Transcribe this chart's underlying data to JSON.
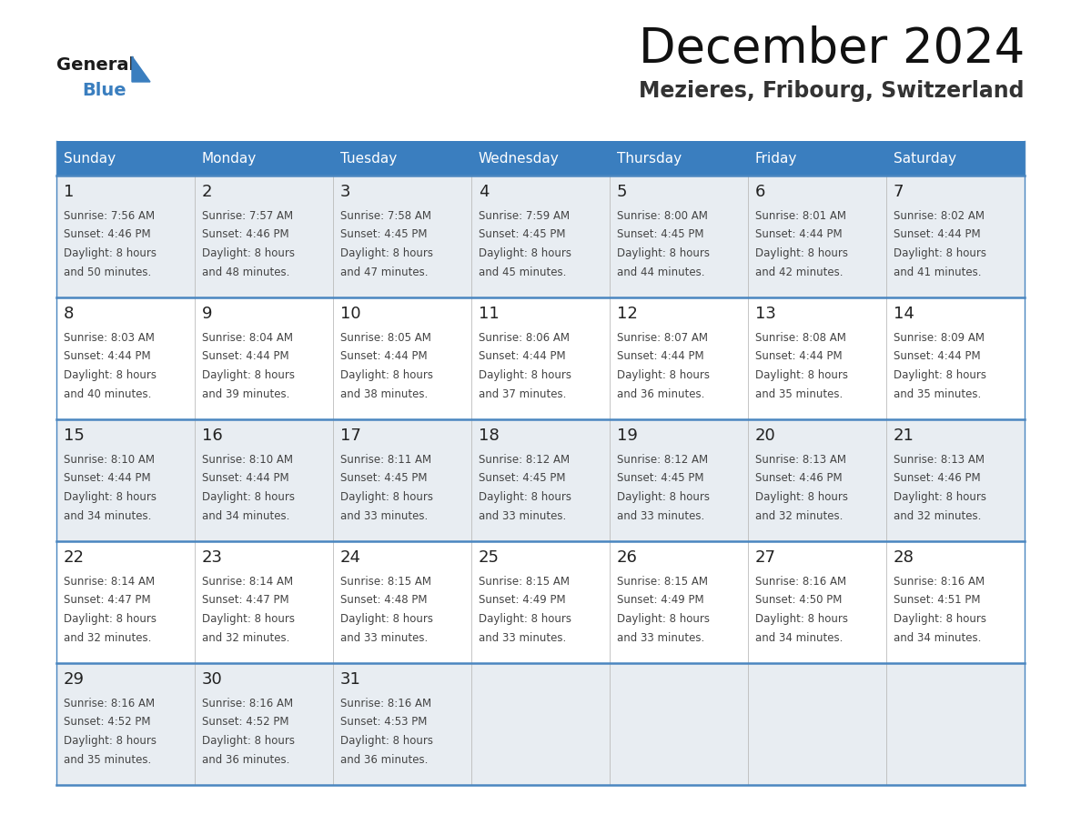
{
  "title": "December 2024",
  "subtitle": "Mezieres, Fribourg, Switzerland",
  "header_color": "#3a7ebf",
  "header_text_color": "#ffffff",
  "day_names": [
    "Sunday",
    "Monday",
    "Tuesday",
    "Wednesday",
    "Thursday",
    "Friday",
    "Saturday"
  ],
  "row_bg_odd": "#e8edf2",
  "row_bg_even": "#ffffff",
  "row_separator_color": "#4a86c0",
  "days": [
    {
      "day": 1,
      "col": 0,
      "row": 0,
      "sunrise": "7:56 AM",
      "sunset": "4:46 PM",
      "daylight": "8 hours\nand 50 minutes."
    },
    {
      "day": 2,
      "col": 1,
      "row": 0,
      "sunrise": "7:57 AM",
      "sunset": "4:46 PM",
      "daylight": "8 hours\nand 48 minutes."
    },
    {
      "day": 3,
      "col": 2,
      "row": 0,
      "sunrise": "7:58 AM",
      "sunset": "4:45 PM",
      "daylight": "8 hours\nand 47 minutes."
    },
    {
      "day": 4,
      "col": 3,
      "row": 0,
      "sunrise": "7:59 AM",
      "sunset": "4:45 PM",
      "daylight": "8 hours\nand 45 minutes."
    },
    {
      "day": 5,
      "col": 4,
      "row": 0,
      "sunrise": "8:00 AM",
      "sunset": "4:45 PM",
      "daylight": "8 hours\nand 44 minutes."
    },
    {
      "day": 6,
      "col": 5,
      "row": 0,
      "sunrise": "8:01 AM",
      "sunset": "4:44 PM",
      "daylight": "8 hours\nand 42 minutes."
    },
    {
      "day": 7,
      "col": 6,
      "row": 0,
      "sunrise": "8:02 AM",
      "sunset": "4:44 PM",
      "daylight": "8 hours\nand 41 minutes."
    },
    {
      "day": 8,
      "col": 0,
      "row": 1,
      "sunrise": "8:03 AM",
      "sunset": "4:44 PM",
      "daylight": "8 hours\nand 40 minutes."
    },
    {
      "day": 9,
      "col": 1,
      "row": 1,
      "sunrise": "8:04 AM",
      "sunset": "4:44 PM",
      "daylight": "8 hours\nand 39 minutes."
    },
    {
      "day": 10,
      "col": 2,
      "row": 1,
      "sunrise": "8:05 AM",
      "sunset": "4:44 PM",
      "daylight": "8 hours\nand 38 minutes."
    },
    {
      "day": 11,
      "col": 3,
      "row": 1,
      "sunrise": "8:06 AM",
      "sunset": "4:44 PM",
      "daylight": "8 hours\nand 37 minutes."
    },
    {
      "day": 12,
      "col": 4,
      "row": 1,
      "sunrise": "8:07 AM",
      "sunset": "4:44 PM",
      "daylight": "8 hours\nand 36 minutes."
    },
    {
      "day": 13,
      "col": 5,
      "row": 1,
      "sunrise": "8:08 AM",
      "sunset": "4:44 PM",
      "daylight": "8 hours\nand 35 minutes."
    },
    {
      "day": 14,
      "col": 6,
      "row": 1,
      "sunrise": "8:09 AM",
      "sunset": "4:44 PM",
      "daylight": "8 hours\nand 35 minutes."
    },
    {
      "day": 15,
      "col": 0,
      "row": 2,
      "sunrise": "8:10 AM",
      "sunset": "4:44 PM",
      "daylight": "8 hours\nand 34 minutes."
    },
    {
      "day": 16,
      "col": 1,
      "row": 2,
      "sunrise": "8:10 AM",
      "sunset": "4:44 PM",
      "daylight": "8 hours\nand 34 minutes."
    },
    {
      "day": 17,
      "col": 2,
      "row": 2,
      "sunrise": "8:11 AM",
      "sunset": "4:45 PM",
      "daylight": "8 hours\nand 33 minutes."
    },
    {
      "day": 18,
      "col": 3,
      "row": 2,
      "sunrise": "8:12 AM",
      "sunset": "4:45 PM",
      "daylight": "8 hours\nand 33 minutes."
    },
    {
      "day": 19,
      "col": 4,
      "row": 2,
      "sunrise": "8:12 AM",
      "sunset": "4:45 PM",
      "daylight": "8 hours\nand 33 minutes."
    },
    {
      "day": 20,
      "col": 5,
      "row": 2,
      "sunrise": "8:13 AM",
      "sunset": "4:46 PM",
      "daylight": "8 hours\nand 32 minutes."
    },
    {
      "day": 21,
      "col": 6,
      "row": 2,
      "sunrise": "8:13 AM",
      "sunset": "4:46 PM",
      "daylight": "8 hours\nand 32 minutes."
    },
    {
      "day": 22,
      "col": 0,
      "row": 3,
      "sunrise": "8:14 AM",
      "sunset": "4:47 PM",
      "daylight": "8 hours\nand 32 minutes."
    },
    {
      "day": 23,
      "col": 1,
      "row": 3,
      "sunrise": "8:14 AM",
      "sunset": "4:47 PM",
      "daylight": "8 hours\nand 32 minutes."
    },
    {
      "day": 24,
      "col": 2,
      "row": 3,
      "sunrise": "8:15 AM",
      "sunset": "4:48 PM",
      "daylight": "8 hours\nand 33 minutes."
    },
    {
      "day": 25,
      "col": 3,
      "row": 3,
      "sunrise": "8:15 AM",
      "sunset": "4:49 PM",
      "daylight": "8 hours\nand 33 minutes."
    },
    {
      "day": 26,
      "col": 4,
      "row": 3,
      "sunrise": "8:15 AM",
      "sunset": "4:49 PM",
      "daylight": "8 hours\nand 33 minutes."
    },
    {
      "day": 27,
      "col": 5,
      "row": 3,
      "sunrise": "8:16 AM",
      "sunset": "4:50 PM",
      "daylight": "8 hours\nand 34 minutes."
    },
    {
      "day": 28,
      "col": 6,
      "row": 3,
      "sunrise": "8:16 AM",
      "sunset": "4:51 PM",
      "daylight": "8 hours\nand 34 minutes."
    },
    {
      "day": 29,
      "col": 0,
      "row": 4,
      "sunrise": "8:16 AM",
      "sunset": "4:52 PM",
      "daylight": "8 hours\nand 35 minutes."
    },
    {
      "day": 30,
      "col": 1,
      "row": 4,
      "sunrise": "8:16 AM",
      "sunset": "4:52 PM",
      "daylight": "8 hours\nand 36 minutes."
    },
    {
      "day": 31,
      "col": 2,
      "row": 4,
      "sunrise": "8:16 AM",
      "sunset": "4:53 PM",
      "daylight": "8 hours\nand 36 minutes."
    }
  ]
}
